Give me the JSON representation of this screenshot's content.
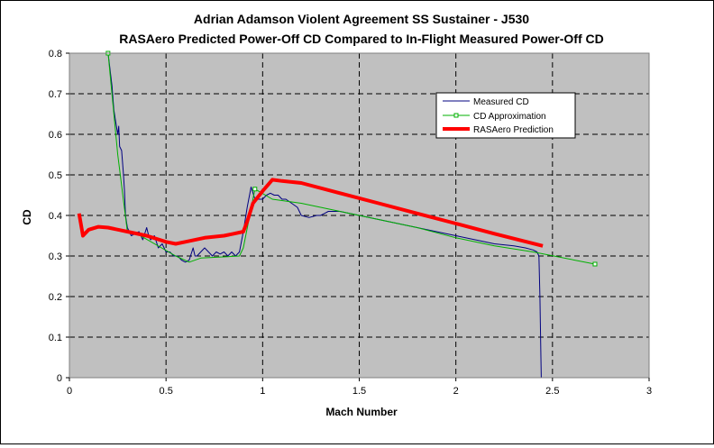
{
  "chart_data": {
    "type": "line",
    "title": "Adrian Adamson Violent Agreement SS Sustainer - J530",
    "subtitle": "RASAero Predicted Power-Off CD Compared to In-Flight Measured Power-Off CD",
    "xlabel": "Mach Number",
    "ylabel": "CD",
    "xlim": [
      0,
      3
    ],
    "ylim": [
      0,
      0.8
    ],
    "x_ticks": [
      "0",
      "0.5",
      "1",
      "1.5",
      "2",
      "2.5",
      "3"
    ],
    "y_ticks": [
      "0",
      "0.1",
      "0.2",
      "0.3",
      "0.4",
      "0.5",
      "0.6",
      "0.7",
      "0.8"
    ],
    "grid": true,
    "legend_position": "top-right",
    "plot_background": "#C0C0C0",
    "series": [
      {
        "name": "Measured CD",
        "color": "#000080",
        "x": [
          0.2,
          0.22,
          0.23,
          0.24,
          0.25,
          0.255,
          0.26,
          0.27,
          0.28,
          0.285,
          0.29,
          0.3,
          0.31,
          0.32,
          0.34,
          0.36,
          0.38,
          0.4,
          0.41,
          0.42,
          0.44,
          0.46,
          0.48,
          0.5,
          0.52,
          0.54,
          0.56,
          0.58,
          0.6,
          0.62,
          0.64,
          0.65,
          0.66,
          0.68,
          0.7,
          0.72,
          0.74,
          0.76,
          0.78,
          0.8,
          0.82,
          0.84,
          0.86,
          0.88,
          0.9,
          0.92,
          0.94,
          0.96,
          0.98,
          1.0,
          1.02,
          1.04,
          1.06,
          1.08,
          1.1,
          1.12,
          1.15,
          1.18,
          1.2,
          1.24,
          1.28,
          1.3,
          1.32,
          1.34,
          1.38,
          1.4,
          1.45,
          1.5,
          1.55,
          1.6,
          1.7,
          1.8,
          1.9,
          2.0,
          2.1,
          2.2,
          2.3,
          2.36,
          2.4,
          2.42,
          2.43,
          2.435,
          2.44,
          2.442
        ],
        "values": [
          0.8,
          0.72,
          0.66,
          0.63,
          0.6,
          0.62,
          0.57,
          0.56,
          0.5,
          0.46,
          0.4,
          0.37,
          0.36,
          0.35,
          0.355,
          0.36,
          0.34,
          0.37,
          0.35,
          0.34,
          0.35,
          0.32,
          0.33,
          0.31,
          0.31,
          0.3,
          0.3,
          0.29,
          0.285,
          0.29,
          0.32,
          0.3,
          0.3,
          0.31,
          0.32,
          0.31,
          0.3,
          0.31,
          0.305,
          0.31,
          0.3,
          0.31,
          0.3,
          0.31,
          0.36,
          0.42,
          0.47,
          0.44,
          0.44,
          0.44,
          0.45,
          0.455,
          0.45,
          0.45,
          0.44,
          0.44,
          0.43,
          0.42,
          0.4,
          0.395,
          0.4,
          0.4,
          0.405,
          0.41,
          0.41,
          0.41,
          0.405,
          0.4,
          0.395,
          0.39,
          0.38,
          0.37,
          0.36,
          0.35,
          0.34,
          0.33,
          0.325,
          0.32,
          0.315,
          0.31,
          0.3,
          0.2,
          0.05,
          0.0
        ]
      },
      {
        "name": "CD Approximation",
        "color": "#00B000",
        "x": [
          0.2,
          0.25,
          0.3,
          0.35,
          0.55,
          0.62,
          0.68,
          0.88,
          0.9,
          0.96,
          1.05,
          1.2,
          1.4,
          1.6,
          1.8,
          2.0,
          2.2,
          2.4,
          2.72
        ],
        "values": [
          0.8,
          0.55,
          0.36,
          0.355,
          0.3,
          0.285,
          0.295,
          0.3,
          0.32,
          0.465,
          0.44,
          0.43,
          0.41,
          0.39,
          0.37,
          0.345,
          0.325,
          0.31,
          0.28
        ]
      },
      {
        "name": "RASAero Prediction",
        "color": "#FF0000",
        "x": [
          0.05,
          0.07,
          0.08,
          0.1,
          0.15,
          0.2,
          0.3,
          0.4,
          0.5,
          0.55,
          0.6,
          0.7,
          0.8,
          0.85,
          0.9,
          0.92,
          0.95,
          1.0,
          1.05,
          1.1,
          1.2,
          1.4,
          1.6,
          1.8,
          2.0,
          2.2,
          2.45
        ],
        "values": [
          0.405,
          0.35,
          0.355,
          0.365,
          0.372,
          0.37,
          0.36,
          0.35,
          0.335,
          0.33,
          0.335,
          0.345,
          0.35,
          0.355,
          0.36,
          0.385,
          0.43,
          0.46,
          0.488,
          0.485,
          0.48,
          0.455,
          0.43,
          0.405,
          0.38,
          0.355,
          0.325
        ]
      }
    ],
    "legend_markers": [
      "line",
      "line-square",
      "thick-line"
    ]
  }
}
